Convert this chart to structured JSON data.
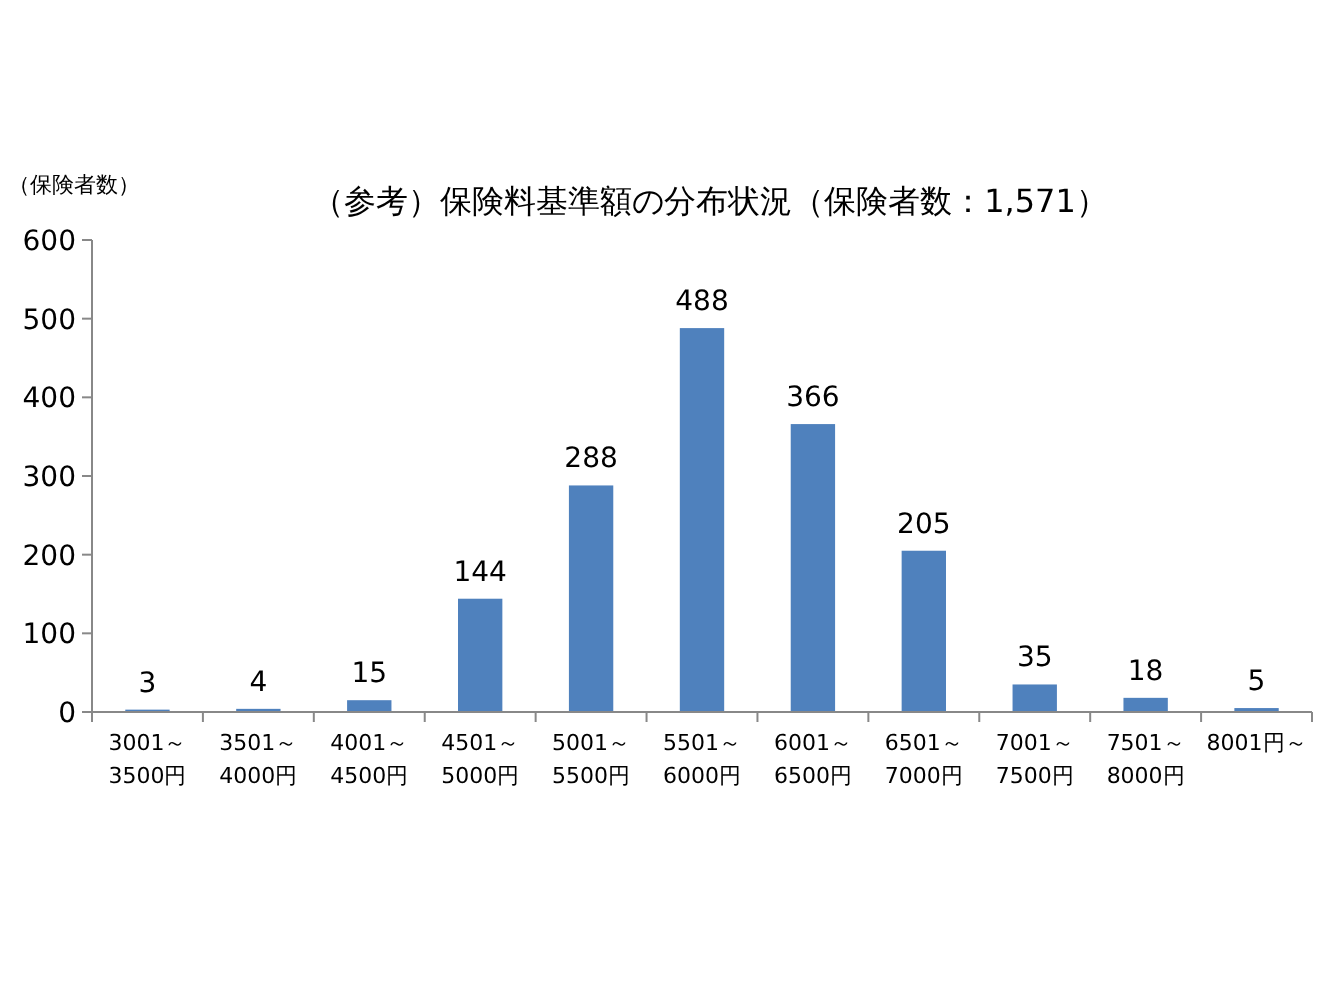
{
  "chart_data": {
    "type": "bar",
    "title": "（参考）保険料基準額の分布状況（保険者数：1,571）",
    "ylabel": "（保険者数）",
    "categories": [
      "3001～\n3500円",
      "3501～\n4000円",
      "4001～\n4500円",
      "4501～\n5000円",
      "5001～\n5500円",
      "5501～\n6000円",
      "6001～\n6500円",
      "6501～\n7000円",
      "7001～\n7500円",
      "7501～\n8000円",
      "8001円～"
    ],
    "values": [
      3,
      4,
      15,
      144,
      288,
      488,
      366,
      205,
      35,
      18,
      5
    ],
    "color": "#4f81bd",
    "ylim": [
      0,
      600
    ],
    "yticks": [
      0,
      100,
      200,
      300,
      400,
      500,
      600
    ],
    "data_labels": true,
    "grid": false
  }
}
